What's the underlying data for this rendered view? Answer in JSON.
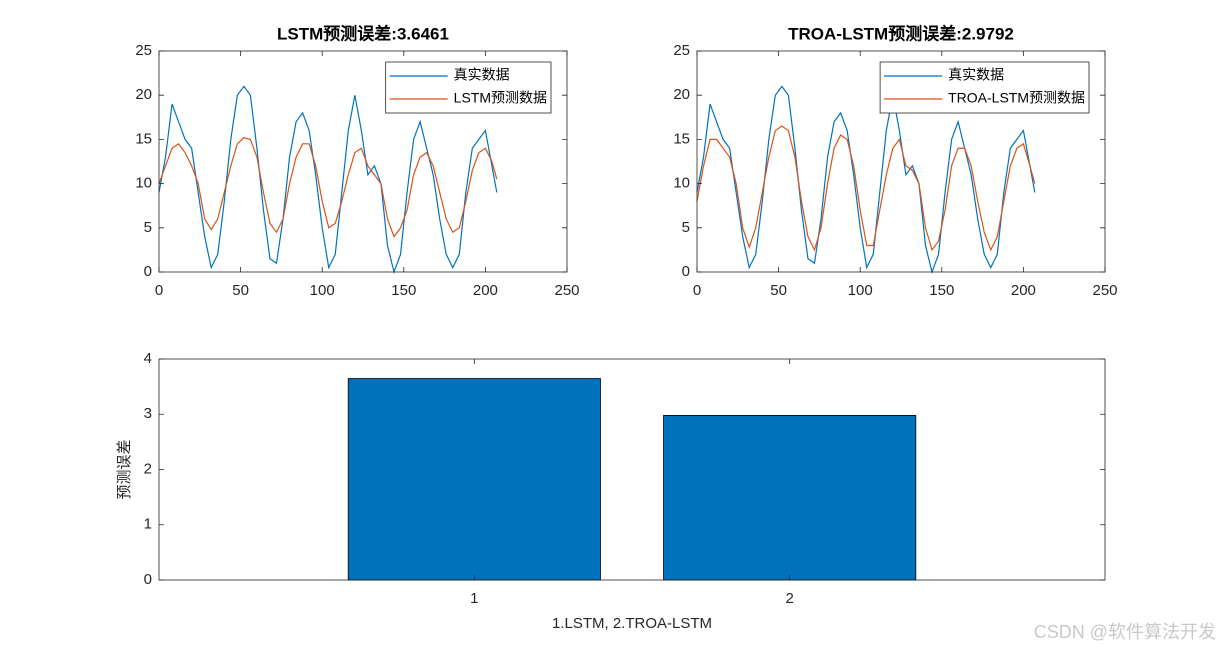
{
  "chart_data": [
    {
      "type": "line",
      "title": "LSTM预测误差:3.6461",
      "x": [
        0,
        4,
        8,
        12,
        16,
        20,
        24,
        28,
        32,
        36,
        40,
        44,
        48,
        52,
        56,
        60,
        64,
        68,
        72,
        76,
        80,
        84,
        88,
        92,
        96,
        100,
        104,
        108,
        112,
        116,
        120,
        124,
        128,
        132,
        136,
        140,
        144,
        148,
        152,
        156,
        160,
        164,
        168,
        172,
        176,
        180,
        184,
        188,
        192,
        196,
        200,
        204,
        207
      ],
      "series": [
        {
          "name": "真实数据",
          "color": "#0072BD",
          "values": [
            9,
            13,
            19,
            17,
            15,
            14,
            9,
            4,
            0.5,
            2,
            8,
            15,
            20,
            21,
            20,
            14,
            7,
            1.5,
            1,
            6,
            13,
            17,
            18,
            16,
            11,
            5,
            0.5,
            2,
            9,
            16,
            20,
            16,
            11,
            12,
            10,
            3,
            0,
            2,
            9,
            15,
            17,
            14,
            11,
            6,
            2,
            0.5,
            2,
            9,
            14,
            15,
            16,
            12,
            9
          ]
        },
        {
          "name": "LSTM预测数据",
          "color": "#D95319",
          "values": [
            10,
            12,
            14,
            14.5,
            13.5,
            12,
            10,
            6,
            4.8,
            6,
            9,
            12,
            14.5,
            15.2,
            15,
            13,
            9,
            5.5,
            4.5,
            6,
            10,
            13,
            14.5,
            14.5,
            12,
            8,
            5,
            5.5,
            8,
            11,
            13.5,
            14,
            12,
            11,
            10,
            6,
            4,
            5,
            7,
            11,
            13,
            13.5,
            12,
            9,
            6,
            4.5,
            5,
            8,
            11.5,
            13.5,
            14,
            12.5,
            10.5
          ]
        }
      ],
      "xlim": [
        0,
        250
      ],
      "xticks": [
        0,
        50,
        100,
        150,
        200,
        250
      ],
      "ylim": [
        0,
        25
      ],
      "yticks": [
        0,
        5,
        10,
        15,
        20,
        25
      ],
      "legend": "northeast"
    },
    {
      "type": "line",
      "title": "TROA-LSTM预测误差:2.9792",
      "x": [
        0,
        4,
        8,
        12,
        16,
        20,
        24,
        28,
        32,
        36,
        40,
        44,
        48,
        52,
        56,
        60,
        64,
        68,
        72,
        76,
        80,
        84,
        88,
        92,
        96,
        100,
        104,
        108,
        112,
        116,
        120,
        124,
        128,
        132,
        136,
        140,
        144,
        148,
        152,
        156,
        160,
        164,
        168,
        172,
        176,
        180,
        184,
        188,
        192,
        196,
        200,
        204,
        207
      ],
      "series": [
        {
          "name": "真实数据",
          "color": "#0072BD",
          "values": [
            9,
            13,
            19,
            17,
            15,
            14,
            9,
            4,
            0.5,
            2,
            8,
            15,
            20,
            21,
            20,
            14,
            7,
            1.5,
            1,
            6,
            13,
            17,
            18,
            16,
            11,
            5,
            0.5,
            2,
            9,
            16,
            20,
            16,
            11,
            12,
            10,
            3,
            0,
            2,
            9,
            15,
            17,
            14,
            11,
            6,
            2,
            0.5,
            2,
            9,
            14,
            15,
            16,
            12,
            9
          ]
        },
        {
          "name": "TROA-LSTM预测数据",
          "color": "#D95319",
          "values": [
            8,
            12,
            15,
            15,
            14,
            13,
            10,
            5,
            2.8,
            5,
            9,
            13,
            16,
            16.5,
            16,
            13,
            8,
            4,
            2.5,
            5,
            10,
            14,
            15.5,
            15,
            12,
            7,
            3,
            3,
            7,
            11,
            14,
            15,
            12,
            11.5,
            10,
            5,
            2.5,
            3.5,
            7,
            12,
            14,
            14,
            12,
            8,
            4.5,
            2.5,
            4,
            8,
            12,
            14,
            14.5,
            12,
            10
          ]
        }
      ],
      "xlim": [
        0,
        250
      ],
      "xticks": [
        0,
        50,
        100,
        150,
        200,
        250
      ],
      "ylim": [
        0,
        25
      ],
      "yticks": [
        0,
        5,
        10,
        15,
        20,
        25
      ],
      "legend": "northeast"
    },
    {
      "type": "bar",
      "x": [
        1,
        2
      ],
      "values": [
        3.6461,
        2.9792
      ],
      "color": "#0072BD",
      "xlim": [
        0,
        3
      ],
      "xticks": [
        1,
        2
      ],
      "ylim": [
        0,
        4
      ],
      "yticks": [
        0,
        1,
        2,
        3,
        4
      ],
      "xlabel": "1.LSTM,        2.TROA-LSTM",
      "ylabel": "预测误差"
    }
  ],
  "watermark": "CSDN @软件算法开发"
}
